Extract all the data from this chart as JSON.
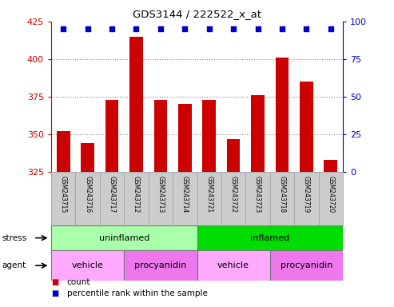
{
  "title": "GDS3144 / 222522_x_at",
  "samples": [
    "GSM243715",
    "GSM243716",
    "GSM243717",
    "GSM243712",
    "GSM243713",
    "GSM243714",
    "GSM243721",
    "GSM243722",
    "GSM243723",
    "GSM243718",
    "GSM243719",
    "GSM243720"
  ],
  "counts": [
    352,
    344,
    373,
    415,
    373,
    370,
    373,
    347,
    376,
    401,
    385,
    333
  ],
  "percentile_ranks": [
    95,
    95,
    95,
    95,
    95,
    95,
    95,
    95,
    95,
    95,
    95,
    95
  ],
  "ylim_left": [
    325,
    425
  ],
  "ylim_right": [
    0,
    100
  ],
  "yticks_left": [
    325,
    350,
    375,
    400,
    425
  ],
  "yticks_right": [
    0,
    25,
    50,
    75,
    100
  ],
  "bar_color": "#cc0000",
  "dot_color": "#0000cc",
  "stress_groups": [
    {
      "label": "uninflamed",
      "start": 0,
      "end": 6,
      "color": "#aaffaa"
    },
    {
      "label": "inflamed",
      "start": 6,
      "end": 12,
      "color": "#00dd00"
    }
  ],
  "agent_groups": [
    {
      "label": "vehicle",
      "start": 0,
      "end": 3,
      "color": "#ffaaff"
    },
    {
      "label": "procyanidin",
      "start": 3,
      "end": 6,
      "color": "#ee77ee"
    },
    {
      "label": "vehicle",
      "start": 6,
      "end": 9,
      "color": "#ffaaff"
    },
    {
      "label": "procyanidin",
      "start": 9,
      "end": 12,
      "color": "#ee77ee"
    }
  ],
  "legend_items": [
    {
      "label": "count",
      "color": "#cc0000"
    },
    {
      "label": "percentile rank within the sample",
      "color": "#0000cc"
    }
  ],
  "grid_color": "#888888",
  "label_bg": "#cccccc",
  "plot_bg": "#ffffff",
  "left_axis_color": "#cc0000",
  "right_axis_color": "#0000cc"
}
